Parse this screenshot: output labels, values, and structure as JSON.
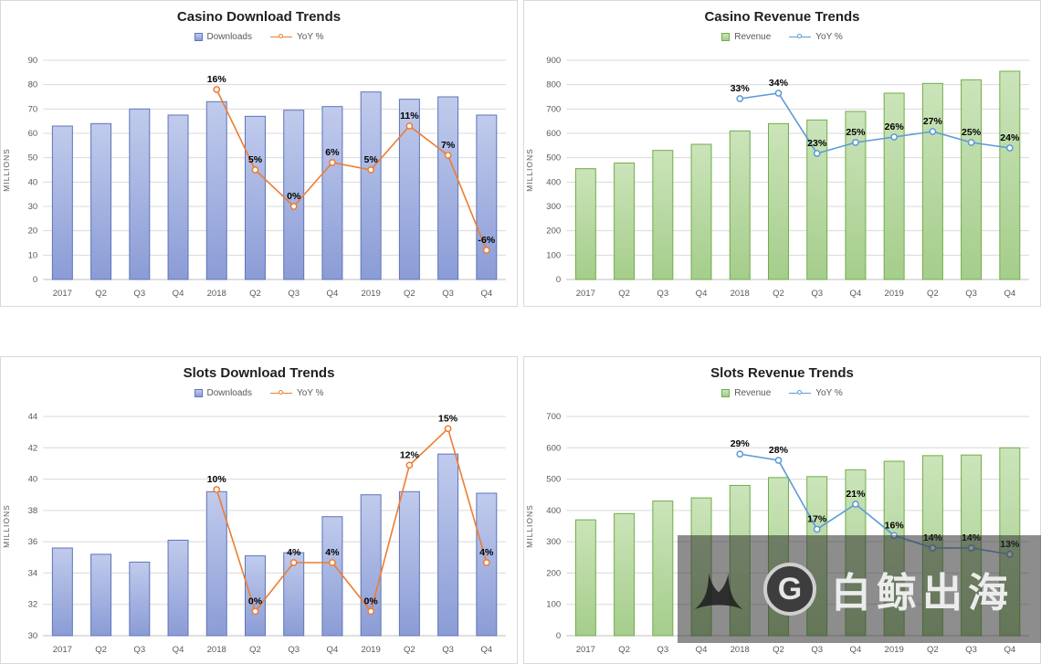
{
  "page": {
    "background": "#ffffff"
  },
  "charts": [
    {
      "id": "casino-download-trends",
      "title": "Casino Download Trends",
      "legend": {
        "bar_label": "Downloads",
        "line_label": "YoY %"
      },
      "colors": {
        "bar_fill_top": "#c0cbec",
        "bar_fill_bottom": "#8b9cd6",
        "bar_stroke": "#5f74b9",
        "line": "#ed7d31"
      },
      "chart_data": {
        "type": "bar+line",
        "title": "Casino Download Trends",
        "ylabel": "MILLIONS",
        "categories": [
          "2017",
          "Q2",
          "Q3",
          "Q4",
          "2018",
          "Q2",
          "Q3",
          "Q4",
          "2019",
          "Q2",
          "Q3",
          "Q4"
        ],
        "series": [
          {
            "name": "Downloads",
            "type": "bar",
            "axis": "primary",
            "values": [
              63,
              64,
              70,
              67.5,
              73,
              67,
              69.5,
              71,
              77,
              74,
              75,
              67.5
            ]
          },
          {
            "name": "YoY %",
            "type": "line",
            "axis": "secondary",
            "values": [
              null,
              null,
              null,
              null,
              16,
              5,
              0,
              6,
              5,
              11,
              7,
              -6
            ],
            "labels": [
              "",
              "",
              "",
              "",
              "16%",
              "5%",
              "0%",
              "6%",
              "5%",
              "11%",
              "7%",
              "-6%"
            ]
          }
        ],
        "ylim": [
          0,
          90
        ],
        "ytick": 10,
        "y2lim": [
          -10,
          20
        ],
        "grid": true,
        "legend_position": "top"
      }
    },
    {
      "id": "casino-revenue-trends",
      "title": "Casino Revenue Trends",
      "legend": {
        "bar_label": "Revenue",
        "line_label": "YoY %"
      },
      "colors": {
        "bar_fill_top": "#cbe4ba",
        "bar_fill_bottom": "#a5cd8b",
        "bar_stroke": "#70ad47",
        "line": "#5b9bd5"
      },
      "chart_data": {
        "type": "bar+line",
        "title": "Casino Revenue Trends",
        "ylabel": "MILLIONS",
        "categories": [
          "2017",
          "Q2",
          "Q3",
          "Q4",
          "2018",
          "Q2",
          "Q3",
          "Q4",
          "2019",
          "Q2",
          "Q3",
          "Q4"
        ],
        "series": [
          {
            "name": "Revenue",
            "type": "bar",
            "axis": "primary",
            "values": [
              455,
              478,
              530,
              555,
              610,
              640,
              655,
              690,
              765,
              805,
              820,
              855
            ]
          },
          {
            "name": "YoY %",
            "type": "line",
            "axis": "secondary",
            "values": [
              null,
              null,
              null,
              null,
              33,
              34,
              23,
              25,
              26,
              27,
              25,
              24
            ],
            "labels": [
              "",
              "",
              "",
              "",
              "33%",
              "34%",
              "23%",
              "25%",
              "26%",
              "27%",
              "25%",
              "24%"
            ]
          }
        ],
        "ylim": [
          0,
          900
        ],
        "ytick": 100,
        "y2lim": [
          0,
          40
        ],
        "grid": true,
        "legend_position": "top"
      }
    },
    {
      "id": "slots-download-trends",
      "title": "Slots Download Trends",
      "legend": {
        "bar_label": "Downloads",
        "line_label": "YoY %"
      },
      "colors": {
        "bar_fill_top": "#c0cbec",
        "bar_fill_bottom": "#8b9cd6",
        "bar_stroke": "#5f74b9",
        "line": "#ed7d31"
      },
      "chart_data": {
        "type": "bar+line",
        "title": "Slots Download Trends",
        "ylabel": "MILLIONS",
        "categories": [
          "2017",
          "Q2",
          "Q3",
          "Q4",
          "2018",
          "Q2",
          "Q3",
          "Q4",
          "2019",
          "Q2",
          "Q3",
          "Q4"
        ],
        "series": [
          {
            "name": "Downloads",
            "type": "bar",
            "axis": "primary",
            "values": [
              35.6,
              35.2,
              34.7,
              36.1,
              39.2,
              35.1,
              35.3,
              37.6,
              39.0,
              39.2,
              41.6,
              39.1
            ]
          },
          {
            "name": "YoY %",
            "type": "line",
            "axis": "secondary",
            "values": [
              null,
              null,
              null,
              null,
              10,
              0,
              4,
              4,
              0,
              12,
              15,
              4
            ],
            "labels": [
              "",
              "",
              "",
              "",
              "10%",
              "0%",
              "4%",
              "4%",
              "0%",
              "12%",
              "15%",
              "4%"
            ]
          }
        ],
        "ylim": [
          30,
          44
        ],
        "ytick": 2,
        "y2lim": [
          -2,
          16
        ],
        "grid": true,
        "legend_position": "top"
      }
    },
    {
      "id": "slots-revenue-trends",
      "title": "Slots Revenue Trends",
      "legend": {
        "bar_label": "Revenue",
        "line_label": "YoY %"
      },
      "colors": {
        "bar_fill_top": "#cbe4ba",
        "bar_fill_bottom": "#a5cd8b",
        "bar_stroke": "#70ad47",
        "line": "#5b9bd5"
      },
      "chart_data": {
        "type": "bar+line",
        "title": "Slots Revenue Trends",
        "ylabel": "MILLIONS",
        "categories": [
          "2017",
          "Q2",
          "Q3",
          "Q4",
          "2018",
          "Q2",
          "Q3",
          "Q4",
          "2019",
          "Q2",
          "Q3",
          "Q4"
        ],
        "series": [
          {
            "name": "Revenue",
            "type": "bar",
            "axis": "primary",
            "values": [
              370,
              390,
              430,
              440,
              480,
              505,
              508,
              530,
              557,
              575,
              577,
              600
            ]
          },
          {
            "name": "YoY %",
            "type": "line",
            "axis": "secondary",
            "values": [
              null,
              null,
              null,
              null,
              29,
              28,
              17,
              21,
              16,
              14,
              14,
              13
            ],
            "labels": [
              "",
              "",
              "",
              "",
              "29%",
              "28%",
              "17%",
              "21%",
              "16%",
              "14%",
              "14%",
              "13%"
            ]
          }
        ],
        "ylim": [
          0,
          700
        ],
        "ytick": 100,
        "y2lim": [
          0,
          35
        ],
        "grid": true,
        "legend_position": "top"
      }
    }
  ],
  "watermark": {
    "logo_letter": "G",
    "text": "白鲸出海"
  }
}
